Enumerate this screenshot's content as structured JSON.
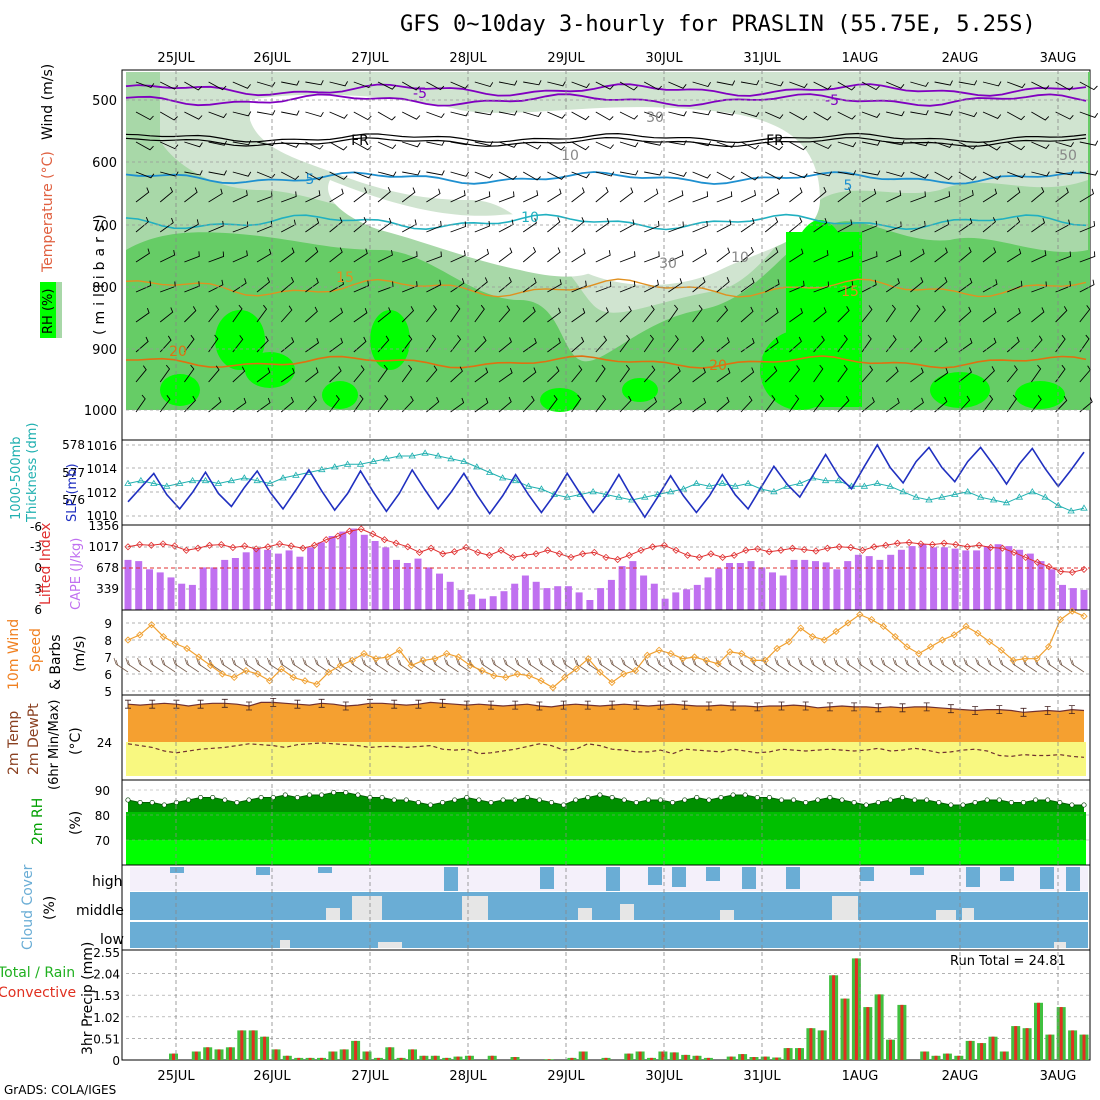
{
  "title": "GFS 0~10day 3-hourly for PRASLIN (55.75E, 5.25S)",
  "credit": "GrADS: COLA/IGES",
  "dates": [
    "25JUL",
    "26JUL",
    "27JUL",
    "28JUL",
    "29JUL",
    "30JUL",
    "31JUL",
    "1AUG",
    "2AUG",
    "3AUG"
  ],
  "colors": {
    "rh_dark": "#00ff00",
    "rh_mid": "#66cc66",
    "rh_light": "#a8d8a8",
    "rh_pale": "#d0e4d0",
    "temp_purple": "#8000c0",
    "temp_blue": "#1e90d0",
    "temp_cyan": "#20b0c0",
    "temp_orange": "#e09020",
    "slp_line": "#2030c0",
    "thick_line": "#20b0b0",
    "lifted_line": "#e03030",
    "cape_bar": "#c070f0",
    "wind_line": "#f0a030",
    "temp_fill": "#f5a030",
    "dew_fill": "#f8f880",
    "rh2m_fill": "#00b000",
    "cloud_fill": "#6aadd5",
    "rain_green": "#40c040",
    "rain_red": "#e03020"
  },
  "panels": {
    "upper": {
      "labels": {
        "wind": "Wind (m/s)",
        "temp": "Temperature (°C)",
        "rh": "RH (%)",
        "rh_note": "RH (%)",
        "unit": "(millibars)"
      },
      "pressure_ticks": [
        "500",
        "600",
        "700",
        "800",
        "900",
        "1000"
      ],
      "contour_labels": [
        "-5",
        "-5",
        "FR",
        "FR",
        "5",
        "5",
        "10",
        "15",
        "15",
        "20",
        "20",
        "30",
        "30",
        "50",
        "10",
        "10"
      ]
    },
    "slp": {
      "labels": {
        "thick": "1000-500mb",
        "thick2": "Thickness (dm)",
        "slp": "SLP (mb)"
      },
      "left_ticks": [
        "578",
        "577",
        "576"
      ],
      "right_ticks": [
        "1016",
        "1014",
        "1012",
        "1010"
      ]
    },
    "cape": {
      "labels": {
        "li": "Lifted Index",
        "cape": "CAPE (J/kg)"
      },
      "left_ticks": [
        "-6",
        "-3",
        "0",
        "3",
        "6"
      ],
      "right_ticks": [
        "1356",
        "1017",
        "678",
        "339"
      ]
    },
    "wind": {
      "labels": {
        "a": "10m Wind",
        "b": "Speed",
        "c": "& Barbs",
        "unit": "(m/s)"
      },
      "ticks": [
        "9",
        "8",
        "7",
        "6",
        "5"
      ]
    },
    "temp2m": {
      "labels": {
        "a": "2m Temp",
        "b": "2m DewPt",
        "c": "(6hr Min/Max)",
        "unit": "(°C)"
      },
      "ticks": [
        "24"
      ]
    },
    "rh2m": {
      "labels": {
        "a": "2m RH",
        "unit": "(%)"
      },
      "ticks": [
        "90",
        "80",
        "70"
      ]
    },
    "cloud": {
      "labels": {
        "a": "Cloud Cover",
        "unit": "(%)",
        "high": "high",
        "middle": "middle",
        "low": "low"
      }
    },
    "precip": {
      "labels": {
        "a": "Total / Rain",
        "b": "Convective",
        "unit": "3hr Precip (mm)",
        "run_total": "Run Total = 24.81"
      },
      "ticks": [
        "2.55",
        "2.04",
        "1.53",
        "1.02",
        "0.51",
        "0"
      ]
    }
  },
  "chart_data": [
    {
      "type": "line",
      "title": "SLP (mb) and 1000-500mb Thickness (dm)",
      "x": "3-hourly steps from 24JUL 12Z to 3AUG 06Z",
      "series": [
        {
          "name": "SLP (mb)",
          "values": [
            1011.2,
            1012.4,
            1013.6,
            1011.8,
            1010.6,
            1012.0,
            1013.7,
            1011.9,
            1010.8,
            1012.4,
            1013.8,
            1012.0,
            1010.6,
            1012.2,
            1013.9,
            1012.1,
            1010.5,
            1011.9,
            1013.8,
            1012.0,
            1010.4,
            1011.9,
            1013.9,
            1012.2,
            1010.6,
            1012.0,
            1013.6,
            1011.8,
            1010.2,
            1011.7,
            1013.5,
            1011.8,
            1010.3,
            1011.8,
            1013.6,
            1011.9,
            1010.3,
            1011.7,
            1013.5,
            1011.6,
            1009.9,
            1011.6,
            1013.4,
            1011.7,
            1010.3,
            1011.7,
            1013.5,
            1011.8,
            1010.6,
            1012.4,
            1014.2,
            1012.7,
            1011.6,
            1013.4,
            1015.2,
            1013.4,
            1012.3,
            1014.2,
            1016.0,
            1014.1,
            1012.8,
            1014.6,
            1015.8,
            1014.1,
            1012.9,
            1014.6,
            1015.8,
            1014.3,
            1012.7,
            1014.4,
            1015.7,
            1014.0,
            1012.5,
            1013.9,
            1015.4
          ]
        },
        {
          "name": "1000-500mb Thickness (dm)",
          "values": [
            576.6,
            576.7,
            576.6,
            576.5,
            576.6,
            576.7,
            576.7,
            576.6,
            576.7,
            576.8,
            576.7,
            576.6,
            576.8,
            576.9,
            577.0,
            577.1,
            577.2,
            577.3,
            577.3,
            577.4,
            577.5,
            577.6,
            577.6,
            577.7,
            577.6,
            577.5,
            577.4,
            577.2,
            577.0,
            576.8,
            576.7,
            576.5,
            576.4,
            576.2,
            576.1,
            576.2,
            576.3,
            576.2,
            576.1,
            576.0,
            576.1,
            576.2,
            576.3,
            576.4,
            576.6,
            576.5,
            576.6,
            576.5,
            576.6,
            576.4,
            576.3,
            576.5,
            576.6,
            576.8,
            576.7,
            576.7,
            576.5,
            576.5,
            576.6,
            576.5,
            576.3,
            576.1,
            576.0,
            576.1,
            576.2,
            576.3,
            576.1,
            576.0,
            575.9,
            576.1,
            576.3,
            576.1,
            575.8,
            575.6,
            575.7
          ]
        }
      ]
    },
    {
      "type": "bar",
      "title": "Lifted Index and CAPE (J/kg)",
      "series": [
        {
          "name": "CAPE (J/kg)",
          "values": [
            800,
            780,
            650,
            600,
            520,
            420,
            400,
            680,
            680,
            800,
            830,
            920,
            980,
            960,
            900,
            950,
            850,
            1000,
            1080,
            1180,
            1250,
            1300,
            1200,
            1100,
            1000,
            800,
            750,
            820,
            680,
            580,
            450,
            320,
            250,
            180,
            220,
            300,
            420,
            550,
            450,
            350,
            380,
            380,
            280,
            160,
            350,
            480,
            700,
            780,
            550,
            420,
            180,
            280,
            330,
            400,
            520,
            660,
            750,
            750,
            780,
            680,
            600,
            550,
            800,
            800,
            780,
            760,
            650,
            780,
            880,
            860,
            800,
            880,
            960,
            1020,
            1050,
            1000,
            1000,
            980,
            950,
            950,
            1020,
            1050,
            1020,
            960,
            900,
            780,
            650,
            400,
            350,
            320
          ]
        },
        {
          "name": "Lifted Index",
          "values": [
            -3.0,
            -3.3,
            -3.2,
            -3.4,
            -3.1,
            -2.5,
            -2.8,
            -3.2,
            -3.3,
            -2.9,
            -3.1,
            -2.7,
            -3.0,
            -3.4,
            -3.1,
            -2.8,
            -3.2,
            -4.0,
            -4.5,
            -5.2,
            -5.5,
            -4.8,
            -4.0,
            -3.5,
            -3.0,
            -2.2,
            -2.8,
            -2.0,
            -2.3,
            -2.9,
            -2.2,
            -1.8,
            -2.5,
            -1.5,
            -1.8,
            -2.0,
            -2.5,
            -2.0,
            -1.5,
            -2.0,
            -2.2,
            -1.5,
            -1.2,
            -1.8,
            -2.5,
            -3.0,
            -3.2,
            -2.5,
            -1.8,
            -1.5,
            -2.0,
            -1.5,
            -1.8,
            -2.5,
            -2.7,
            -2.3,
            -2.5,
            -2.8,
            -2.6,
            -2.4,
            -2.8,
            -3.0,
            -2.9,
            -2.5,
            -3.0,
            -3.2,
            -3.5,
            -3.6,
            -3.4,
            -3.3,
            -3.5,
            -3.3,
            -3.0,
            -3.2,
            -2.9,
            -2.8,
            -2.2,
            -1.5,
            -0.8,
            -0.2,
            0.5,
            0.6,
            0.2
          ]
        }
      ]
    },
    {
      "type": "line",
      "title": "10m Wind Speed (m/s)",
      "series": [
        {
          "name": "10m Wind Speed",
          "values": [
            8.0,
            8.3,
            8.9,
            8.2,
            7.8,
            7.5,
            7.0,
            6.5,
            6.0,
            5.8,
            6.2,
            6.0,
            5.6,
            6.3,
            5.8,
            5.6,
            5.4,
            6.1,
            6.5,
            6.8,
            7.2,
            6.9,
            7.0,
            7.4,
            6.5,
            6.8,
            6.9,
            7.2,
            7.0,
            6.5,
            6.2,
            5.9,
            5.8,
            6.0,
            5.9,
            5.6,
            5.2,
            5.8,
            6.3,
            6.9,
            6.1,
            5.5,
            6.0,
            6.2,
            7.1,
            7.4,
            7.2,
            6.9,
            7.0,
            6.8,
            6.6,
            7.3,
            7.2,
            6.8,
            6.8,
            7.5,
            7.9,
            8.7,
            8.2,
            8.0,
            8.5,
            9.0,
            9.5,
            9.2,
            8.8,
            8.2,
            7.6,
            7.2,
            7.6,
            8.0,
            8.3,
            8.8,
            8.4,
            7.9,
            7.4,
            6.8,
            6.9,
            6.9,
            7.6,
            9.2,
            9.7,
            9.4
          ]
        }
      ]
    },
    {
      "type": "area",
      "title": "2m Temp / 2m DewPt (°C)",
      "series": [
        {
          "name": "2m Temp",
          "values": [
            28.2,
            28.1,
            28.2,
            28.3,
            28.2,
            28.0,
            28.2,
            28.3,
            28.3,
            28.2,
            28.0,
            28.4,
            28.4,
            28.3,
            28.2,
            28.1,
            28.3,
            28.2,
            28.0,
            28.1,
            28.3,
            28.3,
            28.2,
            28.1,
            28.2,
            28.4,
            28.3,
            28.2,
            28.1,
            28.2,
            28.1,
            28.0,
            28.1,
            28.2,
            28.0,
            27.9,
            28.1,
            28.2,
            28.1,
            28.0,
            28.1,
            28.2,
            28.1,
            28.0,
            28.1,
            28.2,
            28.1,
            28.0,
            28.0,
            28.1,
            28.0,
            28.0,
            27.9,
            28.0,
            28.0,
            28.1,
            28.0,
            27.8,
            27.9,
            28.0,
            27.9,
            27.9,
            27.8,
            27.9,
            27.8,
            27.9,
            27.9,
            27.8,
            27.7,
            27.6,
            27.5,
            27.6,
            27.6,
            27.5,
            27.3,
            27.4,
            27.5,
            27.4,
            27.6,
            27.5
          ]
        },
        {
          "name": "2m DewPt",
          "values": [
            23.8,
            23.6,
            23.4,
            23.0,
            22.8,
            23.0,
            23.2,
            23.3,
            23.4,
            23.6,
            23.8,
            23.7,
            23.6,
            23.4,
            23.7,
            23.8,
            23.9,
            23.8,
            23.7,
            23.6,
            23.4,
            23.5,
            23.5,
            23.4,
            23.5,
            23.6,
            23.2,
            23.1,
            23.2,
            22.7,
            22.8,
            23.0,
            23.2,
            23.5,
            23.8,
            23.6,
            23.1,
            23.2,
            23.8,
            23.6,
            23.2,
            23.1,
            22.9,
            22.9,
            23.1,
            22.7,
            23.2,
            23.1,
            23.0,
            22.9,
            23.2,
            23.0,
            22.8,
            22.9,
            23.2,
            23.1,
            23.0,
            23.1,
            23.2,
            23.1,
            23.0,
            23.1,
            23.3,
            23.0,
            23.1,
            23.3,
            23.1,
            22.8,
            22.9,
            23.1,
            23.2,
            23.0,
            22.5,
            22.4,
            22.6,
            22.5,
            22.5,
            22.6,
            22.4,
            22.3
          ]
        }
      ]
    },
    {
      "type": "area",
      "title": "2m RH (%)",
      "series": [
        {
          "name": "2m RH",
          "values": [
            86,
            85,
            85,
            84,
            85,
            86,
            87,
            87,
            86,
            85,
            86,
            87,
            87,
            88,
            87,
            88,
            88,
            89,
            89,
            88,
            87,
            87,
            86,
            86,
            85,
            84,
            85,
            86,
            87,
            86,
            85,
            86,
            86,
            87,
            86,
            85,
            84,
            86,
            87,
            88,
            87,
            86,
            85,
            86,
            86,
            85,
            86,
            87,
            86,
            87,
            88,
            88,
            87,
            87,
            86,
            86,
            85,
            86,
            87,
            86,
            85,
            84,
            85,
            86,
            87,
            86,
            86,
            85,
            84,
            84,
            85,
            86,
            86,
            85,
            85,
            86,
            86,
            85,
            84,
            84
          ]
        }
      ]
    },
    {
      "type": "bar",
      "title": "3hr Precip (mm)",
      "ylabel": "3hr Precip (mm)",
      "series": [
        {
          "name": "Total",
          "values": [
            0,
            0,
            0,
            0,
            0.15,
            0,
            0.2,
            0.3,
            0.25,
            0.3,
            0.7,
            0.7,
            0.55,
            0.25,
            0.1,
            0.05,
            0.05,
            0.05,
            0.2,
            0.25,
            0.45,
            0.2,
            0.05,
            0.3,
            0.05,
            0.25,
            0.1,
            0.1,
            0.05,
            0.08,
            0.1,
            0,
            0.1,
            0,
            0.07,
            0,
            0,
            0.02,
            0,
            0.05,
            0.2,
            0,
            0.05,
            0,
            0.15,
            0.2,
            0.05,
            0.2,
            0.18,
            0.12,
            0.1,
            0.05,
            0,
            0.08,
            0.14,
            0.07,
            0.08,
            0.06,
            0.28,
            0.28,
            0.75,
            0.7,
            2.0,
            1.45,
            2.4,
            1.25,
            1.55,
            0.48,
            1.3,
            0,
            0.2,
            0.1,
            0.15,
            0.1,
            0.45,
            0.4,
            0.55,
            0.2,
            0.8,
            0.75,
            1.35,
            0.6,
            1.25,
            0.7,
            0.6
          ]
        }
      ]
    }
  ]
}
